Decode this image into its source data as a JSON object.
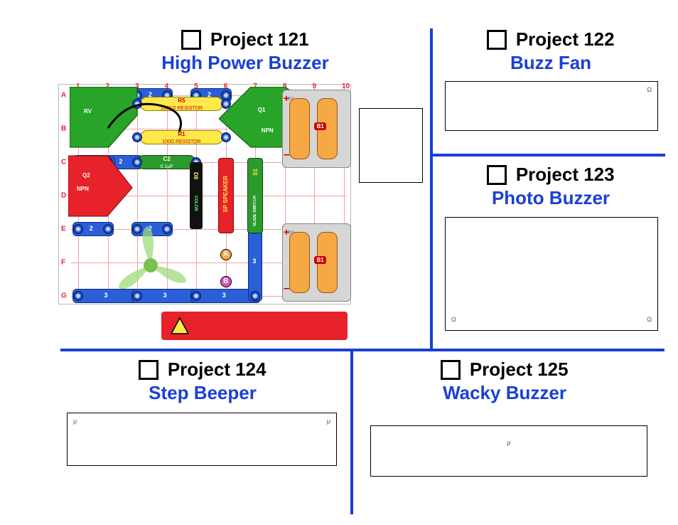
{
  "projects": {
    "p121": {
      "num": "Project 121",
      "name": "High Power Buzzer"
    },
    "p122": {
      "num": "Project 122",
      "name": "Buzz Fan"
    },
    "p123": {
      "num": "Project 123",
      "name": "Photo Buzzer"
    },
    "p124": {
      "num": "Project 124",
      "name": "Step Beeper"
    },
    "p125": {
      "num": "Project 125",
      "name": "Wacky Buzzer"
    }
  },
  "descriptions": {
    "p121_side": "",
    "p122": "Ω",
    "p123": "Ω                                                         Ω",
    "p124": "μ                                                                                               μ",
    "p125": "μ"
  },
  "circuit": {
    "grid": {
      "rows": [
        "A",
        "B",
        "C",
        "D",
        "E",
        "F",
        "G"
      ],
      "cols": [
        "1",
        "2",
        "3",
        "4",
        "5",
        "6",
        "7",
        "8",
        "9",
        "10"
      ]
    },
    "components": {
      "rv_label": "RV",
      "r5_label": "R5",
      "r5_val": "100KΩ  RESISTOR",
      "r1_label": "R1",
      "r1_val": "100Ω   RESISTOR",
      "q1_label": "Q1",
      "q2_label": "Q2",
      "c2_label": "C2",
      "c2_val": "0.1μF",
      "d8_label": "D8",
      "sp_label": "SP SPEAKER",
      "s1_label": "S1",
      "slide_label": "SLIDE SWITCH",
      "b1_label": "B1",
      "b1b_label": "B1",
      "npn_label": "NPN",
      "color_label": "COLOR",
      "plus": "+",
      "minus": "–",
      "a_dot": "A",
      "b_dot": "B"
    }
  },
  "colors": {
    "blue": "#1a3fd6",
    "red": "#e8222a",
    "green": "#28a428",
    "yellow": "#ffe94a",
    "orange": "#f5a843",
    "gray": "#d6d6d6"
  }
}
